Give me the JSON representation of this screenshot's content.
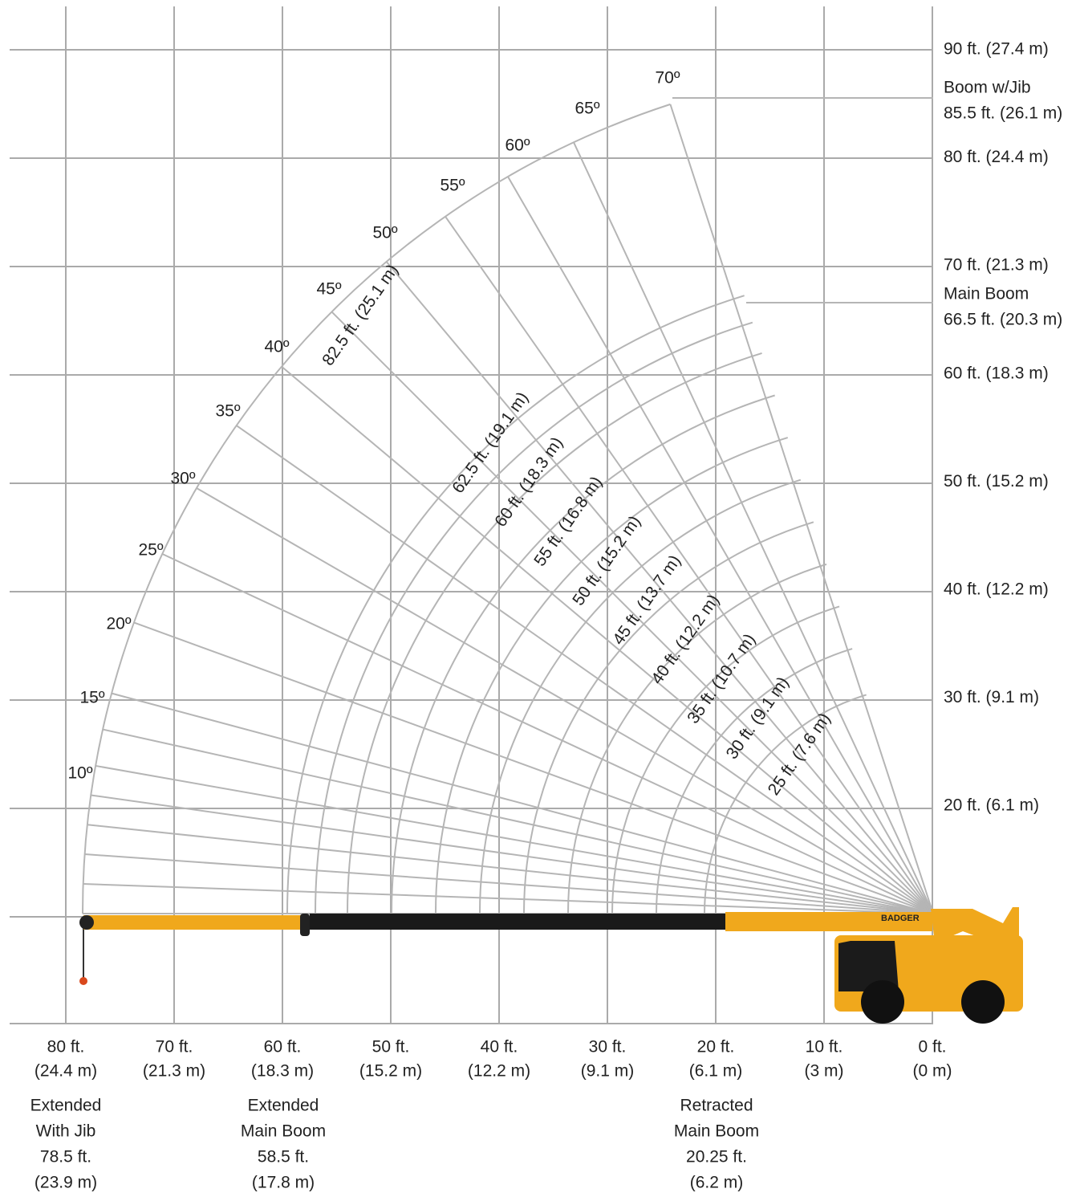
{
  "x_axis": [
    {
      "ft": "80 ft.",
      "m": "(24.4 m)"
    },
    {
      "ft": "70 ft.",
      "m": "(21.3 m)"
    },
    {
      "ft": "60 ft.",
      "m": "(18.3 m)"
    },
    {
      "ft": "50 ft.",
      "m": "(15.2 m)"
    },
    {
      "ft": "40 ft.",
      "m": "(12.2 m)"
    },
    {
      "ft": "30 ft.",
      "m": "(9.1 m)"
    },
    {
      "ft": "20 ft.",
      "m": "(6.1 m)"
    },
    {
      "ft": "10 ft.",
      "m": "(3 m)"
    },
    {
      "ft": "0 ft.",
      "m": "(0 m)"
    }
  ],
  "y_axis": [
    "90 ft. (27.4 m)",
    "80 ft. (24.4 m)",
    "70 ft. (21.3 m)",
    "60 ft. (18.3 m)",
    "50 ft. (15.2 m)",
    "40 ft. (12.2 m)",
    "30 ft. (9.1 m)",
    "20 ft. (6.1 m)"
  ],
  "height_notes": [
    {
      "lines": [
        "Boom w/Jib",
        "85.5 ft. (26.1 m)"
      ]
    },
    {
      "lines": [
        "Main Boom",
        "66.5 ft. (20.3 m)"
      ]
    }
  ],
  "angles": [
    "70º",
    "65º",
    "60º",
    "55º",
    "50º",
    "45º",
    "40º",
    "35º",
    "30º",
    "25º",
    "20º",
    "15º",
    "10º"
  ],
  "boom_lengths": [
    "82.5 ft. (25.1 m)",
    "62.5 ft. (19.1 m)",
    "60 ft. (18.3 m)",
    "55 ft. (16.8 m)",
    "50 ft. (15.2 m)",
    "45 ft. (13.7 m)",
    "40 ft. (12.2 m)",
    "35 ft. (10.7 m)",
    "30 ft. (9.1 m)",
    "25 ft. (7.6 m)"
  ],
  "reach_notes": [
    {
      "lines": [
        "Extended",
        "With Jib",
        "78.5 ft.",
        "(23.9 m)"
      ]
    },
    {
      "lines": [
        "Extended",
        "Main Boom",
        "58.5 ft.",
        "(17.8 m)"
      ]
    },
    {
      "lines": [
        "Retracted",
        "Main Boom",
        "20.25 ft.",
        "(6.2 m)"
      ]
    }
  ],
  "logo": "BADGER"
}
